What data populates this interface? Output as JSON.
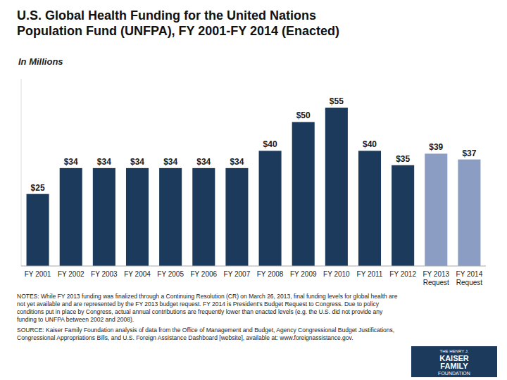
{
  "chart_data": {
    "type": "bar",
    "title": "U.S. Global Health Funding for the United Nations\nPopulation Fund (UNFPA), FY 2001-FY 2014 (Enacted)",
    "subtitle": "In Millions",
    "categories": [
      "FY 2001",
      "FY 2002",
      "FY 2003",
      "FY 2004",
      "FY 2005",
      "FY 2006",
      "FY 2007",
      "FY 2008",
      "FY 2009",
      "FY 2010",
      "FY 2011",
      "FY 2012",
      "FY 2013\nRequest",
      "FY 2014\nRequest"
    ],
    "values": [
      25,
      34,
      34,
      34,
      34,
      34,
      34,
      40,
      50,
      55,
      40,
      35,
      39,
      37
    ],
    "value_labels": [
      "$25",
      "$34",
      "$34",
      "$34",
      "$34",
      "$34",
      "$34",
      "$40",
      "$50",
      "$55",
      "$40",
      "$35",
      "$39",
      "$37"
    ],
    "colors": [
      "#1b3a5c",
      "#1b3a5c",
      "#1b3a5c",
      "#1b3a5c",
      "#1b3a5c",
      "#1b3a5c",
      "#1b3a5c",
      "#1b3a5c",
      "#1b3a5c",
      "#1b3a5c",
      "#1b3a5c",
      "#1b3a5c",
      "#8b9dc3",
      "#8b9dc3"
    ],
    "ylim": [
      0,
      65
    ],
    "grid": false,
    "data_labels": true,
    "tick_labels": "x",
    "notes": "NOTES: While FY 2013 funding was finalized through a Continuing Resolution (CR) on March 26, 2013, final funding levels for global health are\nnot yet available and are represented by the FY 2013 budget request. FY 2014 is President’s Budget Request to Congress. Due to policy\nconditions put in place by Congress, actual annual contributions are frequently lower than enacted levels (e.g. the U.S. did not provide any\nfunding to UNFPA between 2002 and 2008).",
    "source": "SOURCE: Kaiser Family Foundation analysis of data from the Office of Management and Budget, Agency Congressional Budget Justifications,\nCongressional Appropriations Bills, and U.S. Foreign Assistance Dashboard [website], available at: www.foreignassistance.gov.",
    "logo": [
      "THE HENRY J.",
      "KAISER",
      "FAMILY",
      "FOUNDATION"
    ]
  }
}
